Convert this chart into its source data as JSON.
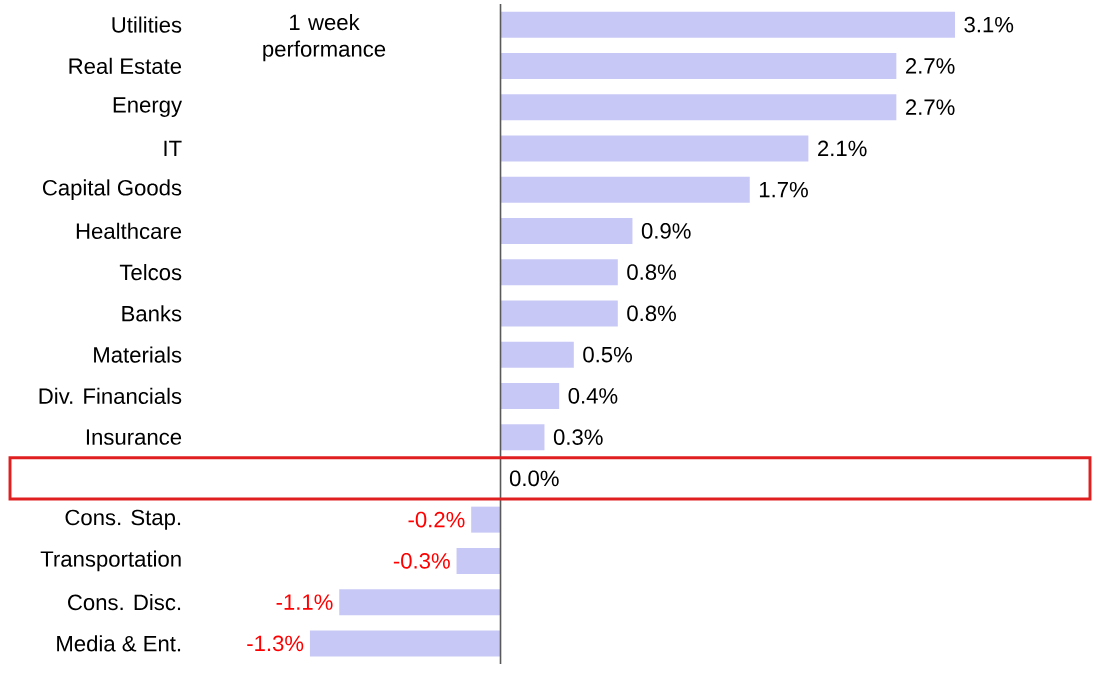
{
  "chart_data": {
    "type": "bar",
    "orientation": "horizontal",
    "categories": [
      "Utilities",
      "Real Estate",
      "Energy",
      "IT",
      "Capital Goods",
      "Healthcare",
      "Telcos",
      "Banks",
      "Materials",
      "Div. Financials",
      "Insurance",
      null,
      "Cons. Stap.",
      "Transportation",
      "Cons. Disc.",
      "Media & Ent."
    ],
    "values": [
      3.1,
      2.7,
      2.7,
      2.1,
      1.7,
      0.9,
      0.8,
      0.8,
      0.5,
      0.4,
      0.3,
      0.0,
      -0.2,
      -0.3,
      -1.1,
      -1.3
    ],
    "value_labels": [
      "3.1%",
      "2.7%",
      "2.7%",
      "2.1%",
      "1.7%",
      "0.9%",
      "0.8%",
      "0.8%",
      "0.5%",
      "0.4%",
      "0.3%",
      "0.0%",
      "-0.2%",
      "-0.3%",
      "-1.1%",
      "-1.3%"
    ],
    "color": "#c8c8f6",
    "tick_labels": "y",
    "annotations": [
      "1 week performance"
    ]
  }
}
